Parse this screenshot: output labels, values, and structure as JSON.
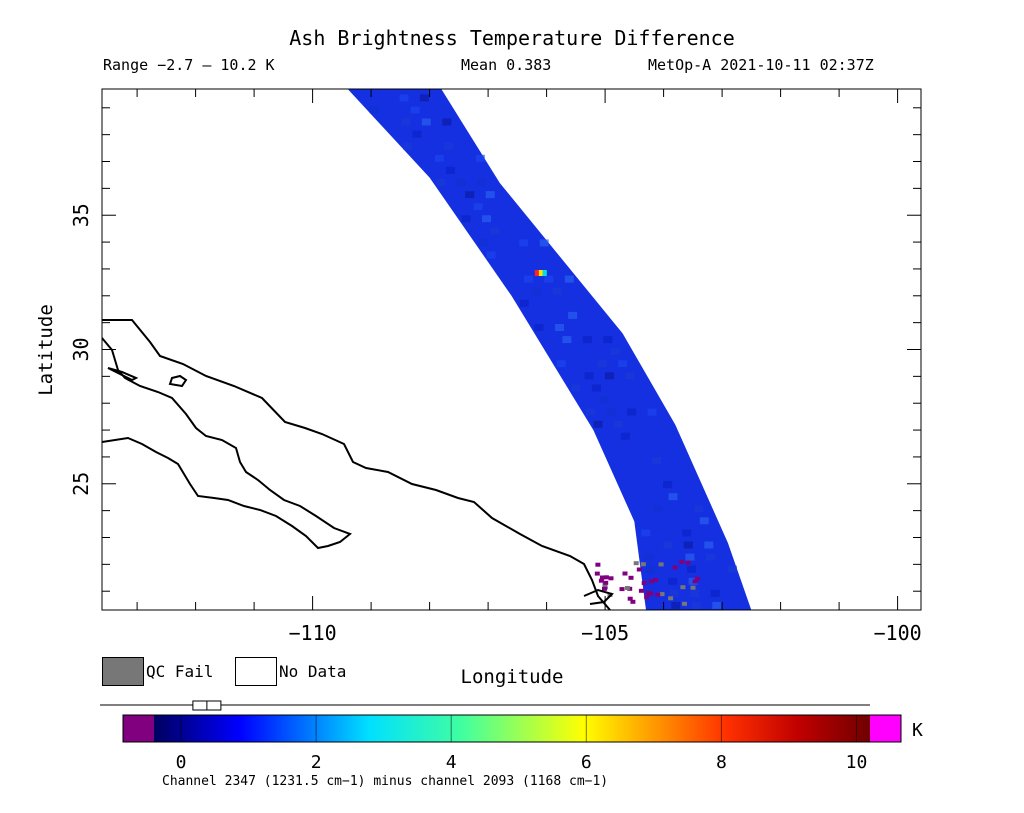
{
  "header": {
    "title": "Ash Brightness Temperature Difference",
    "range": "Range −2.7 – 10.2 K",
    "mean": "Mean 0.383",
    "satellite": "MetOp-A 2021-10-11 02:37Z"
  },
  "axes": {
    "xlabel": "Longitude",
    "ylabel": "Latitude",
    "xticks": [
      {
        "value": -110,
        "label": "−110"
      },
      {
        "value": -105,
        "label": "−105"
      },
      {
        "value": -100,
        "label": "−100"
      }
    ],
    "yticks": [
      {
        "value": 35,
        "label": "35"
      },
      {
        "value": 30,
        "label": "30"
      },
      {
        "value": 25,
        "label": "25"
      }
    ],
    "xlim": [
      -113.6,
      -99.6
    ],
    "ylim": [
      20.3,
      39.7
    ]
  },
  "legend": {
    "qc_fail": "QC Fail",
    "no_data": "No Data",
    "qc_color": "#777777"
  },
  "colorbar": {
    "unit": "K",
    "caption": "Channel 2347 (1231.5 cm−1) minus channel 2093 (1168 cm−1)",
    "range": [
      -1,
      11
    ],
    "ticks": [
      {
        "value": 0,
        "label": "0"
      },
      {
        "value": 2,
        "label": "2"
      },
      {
        "value": 4,
        "label": "4"
      },
      {
        "value": 6,
        "label": "6"
      },
      {
        "value": 8,
        "label": "8"
      },
      {
        "value": 10,
        "label": "10"
      }
    ],
    "mean_value": 0.383,
    "under_color": "#800080",
    "over_color": "#ff00ff"
  },
  "map": {
    "swath_color": "#1430e0",
    "swath": {
      "west_edge": [
        [
          -109.4,
          39.7
        ],
        [
          -108.0,
          36.4
        ],
        [
          -106.6,
          32.0
        ],
        [
          -105.2,
          27.0
        ],
        [
          -104.5,
          23.6
        ],
        [
          -104.3,
          20.3
        ]
      ],
      "east_edge": [
        [
          -102.5,
          20.3
        ],
        [
          -102.9,
          22.8
        ],
        [
          -103.8,
          27.2
        ],
        [
          -104.7,
          30.6
        ],
        [
          -106.8,
          36.2
        ],
        [
          -107.8,
          39.7
        ]
      ]
    },
    "hotspot": {
      "lon": -106.1,
      "lat": 32.85
    }
  }
}
